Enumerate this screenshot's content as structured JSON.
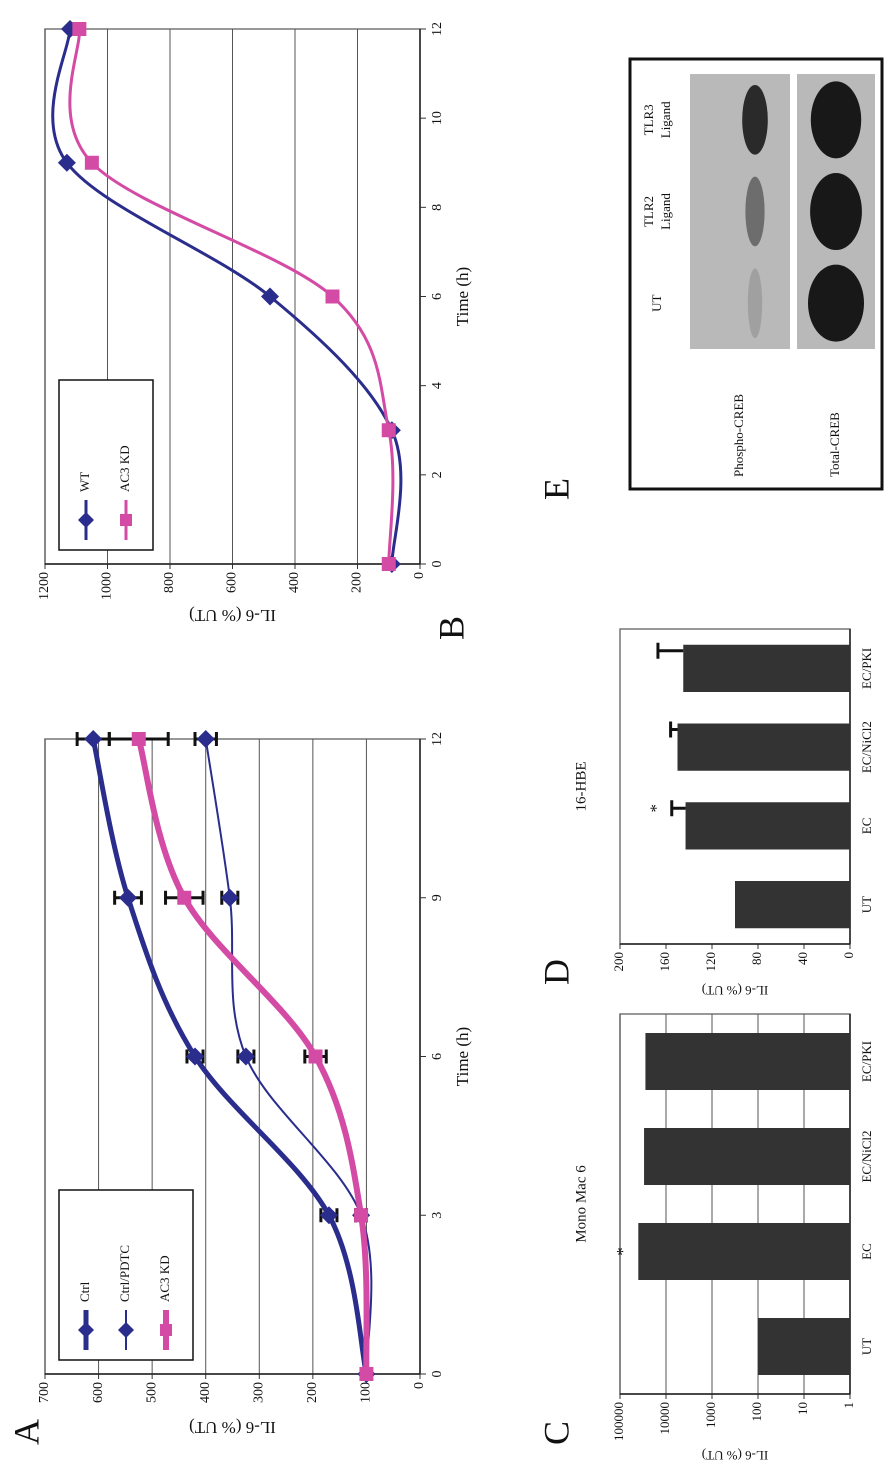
{
  "chart_data": [
    {
      "type": "line",
      "panel": "A",
      "y_label": "IL-6 (% UT)",
      "x_label": "Time (h)",
      "x": [
        0,
        3,
        6,
        9,
        12
      ],
      "xlim": [
        0,
        12
      ],
      "xticks": [
        0,
        3,
        6,
        9,
        12
      ],
      "ylim": [
        0,
        700
      ],
      "yticks": [
        0,
        100,
        200,
        300,
        400,
        500,
        600,
        700
      ],
      "grid": true,
      "legend": "upper left",
      "series": [
        {
          "name": "Ctrl",
          "color": "#2a2d8c",
          "marker": "diamond",
          "line_width": 5,
          "values": [
            100,
            170,
            420,
            545,
            610
          ],
          "errors": [
            null,
            15,
            15,
            25,
            30
          ]
        },
        {
          "name": "Ctrl/PDTC",
          "color": "#2a2d8c",
          "marker": "diamond",
          "line_width": 2,
          "values": [
            100,
            110,
            325,
            355,
            400
          ],
          "errors": [
            null,
            10,
            15,
            15,
            20
          ]
        },
        {
          "name": "AC3 KD",
          "color": "#d44ba5",
          "marker": "square",
          "line_width": 6,
          "values": [
            100,
            110,
            195,
            440,
            525
          ],
          "errors": [
            null,
            10,
            20,
            35,
            55
          ]
        }
      ]
    },
    {
      "type": "line",
      "panel": "B",
      "y_label": "IL-6 (% UT)",
      "x_label": "Time (h)",
      "x": [
        0,
        3,
        6,
        9,
        12
      ],
      "xlim": [
        0,
        12
      ],
      "xticks": [
        0,
        2,
        4,
        6,
        8,
        10,
        12
      ],
      "ylim": [
        0,
        1200
      ],
      "yticks": [
        0,
        200,
        400,
        600,
        800,
        1000,
        1200
      ],
      "grid": true,
      "legend": "upper left",
      "series": [
        {
          "name": "WT",
          "color": "#2a2d8c",
          "marker": "diamond",
          "line_width": 3,
          "values": [
            90,
            90,
            480,
            1130,
            1120
          ]
        },
        {
          "name": "AC3 KD",
          "color": "#d44ba5",
          "marker": "square",
          "line_width": 3,
          "values": [
            100,
            100,
            280,
            1050,
            1090
          ]
        }
      ]
    },
    {
      "type": "bar",
      "panel": "C",
      "title": "Mono Mac 6",
      "y_label": "IL-6 (% UT)",
      "categories": [
        "UT",
        "EC",
        "EC/NiCl2",
        "EC/PKI"
      ],
      "values": [
        100,
        40000,
        30000,
        28000
      ],
      "color": "#333333",
      "ylim": [
        1,
        100000
      ],
      "yticks": [
        1,
        10,
        100,
        1000,
        10000,
        100000
      ],
      "log_y": true,
      "grid": true,
      "annotations": [
        {
          "text": "*",
          "category": "EC"
        }
      ]
    },
    {
      "type": "bar",
      "panel": "D",
      "title": "16-HBE",
      "y_label": "IL-6 (% UT)",
      "categories": [
        "UT",
        "EC",
        "EC/NiCl2",
        "EC/PKI"
      ],
      "values": [
        100,
        143,
        150,
        145
      ],
      "errors": [
        null,
        12,
        6,
        22
      ],
      "color": "#333333",
      "ylim": [
        0,
        200
      ],
      "yticks": [
        0,
        40,
        80,
        120,
        160,
        200
      ],
      "grid": false,
      "annotations": [
        {
          "text": "*",
          "category": "EC"
        }
      ]
    }
  ],
  "blot": {
    "panel": "E",
    "lanes": [
      [
        "UT"
      ],
      [
        "TLR2",
        "Ligand"
      ],
      [
        "TLR3",
        "Ligand"
      ]
    ],
    "rows": [
      "Phospho-CREB",
      "Total-CREB"
    ]
  }
}
